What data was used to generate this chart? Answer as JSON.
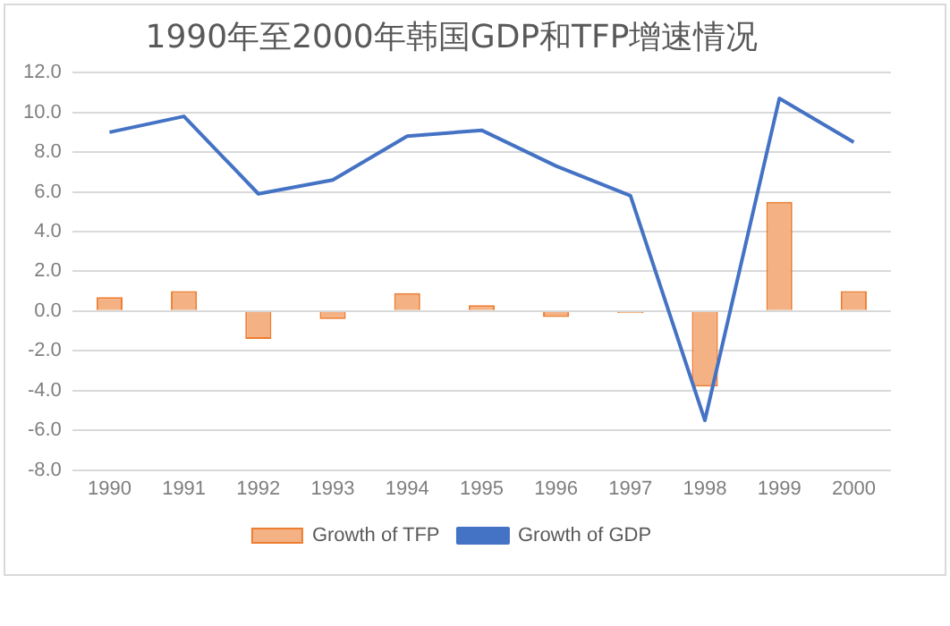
{
  "chart_data": {
    "type": "bar",
    "title": "1990年至2000年韩国GDP和TFP增速情况",
    "categories": [
      "1990",
      "1991",
      "1992",
      "1993",
      "1994",
      "1995",
      "1996",
      "1997",
      "1998",
      "1999",
      "2000"
    ],
    "series": [
      {
        "name": "Growth of TFP",
        "color": "#f4b183",
        "values": [
          0.7,
          1.0,
          -1.4,
          -0.4,
          0.9,
          0.3,
          -0.3,
          -0.1,
          -3.8,
          5.5,
          1.0
        ]
      },
      {
        "name": "Growth of GDP",
        "type": "line",
        "color": "#4472c4",
        "values": [
          9.0,
          9.8,
          5.9,
          6.6,
          8.8,
          9.1,
          7.3,
          5.8,
          -5.5,
          10.7,
          8.5
        ]
      }
    ],
    "ylim": [
      -8,
      12
    ],
    "yticks": [
      {
        "value": -8,
        "label": "-8.0"
      },
      {
        "value": -6,
        "label": "-6.0"
      },
      {
        "value": -4,
        "label": "-4.0"
      },
      {
        "value": -2,
        "label": "-2.0"
      },
      {
        "value": 0,
        "label": "0.0"
      },
      {
        "value": 2,
        "label": "2.0"
      },
      {
        "value": 4,
        "label": "4.0"
      },
      {
        "value": 6,
        "label": "6.0"
      },
      {
        "value": 8,
        "label": "8.0"
      },
      {
        "value": 10,
        "label": "10.0"
      },
      {
        "value": 12,
        "label": "12.0"
      }
    ],
    "grid": "y",
    "legend": "bottom",
    "marker": "none",
    "line_style": "solid"
  }
}
